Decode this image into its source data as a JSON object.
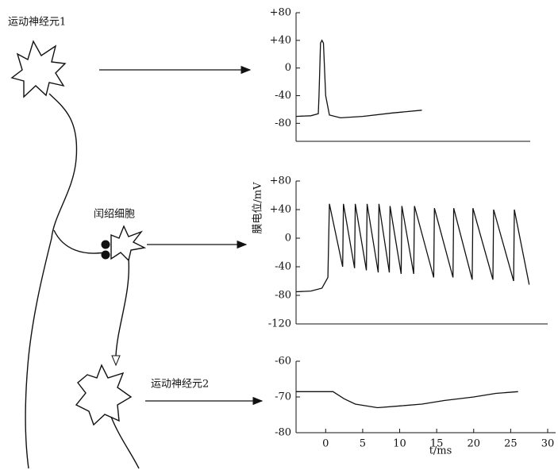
{
  "diagram": {
    "labels": [
      "运动神经元1",
      "闰绍细胞",
      "运动神经元2"
    ]
  },
  "chart_data": [
    {
      "type": "line",
      "x": [
        -4,
        -2,
        -1,
        -0.9,
        -0.7,
        -0.5,
        -0.3,
        0,
        0.5,
        2,
        5,
        9,
        13
      ],
      "values": [
        -70,
        -69,
        -66,
        -40,
        36,
        40,
        36,
        -40,
        -68,
        -72,
        -70,
        -65,
        -61
      ],
      "xlim": [
        -4,
        30
      ],
      "ylim": [
        -106,
        80
      ],
      "yticks": [
        {
          "value": 80,
          "label": "+80"
        },
        {
          "value": 40,
          "label": "+40"
        },
        0,
        -40,
        -80
      ]
    },
    {
      "type": "line",
      "y_label": "膜电位/mV",
      "x": [
        -4,
        -2,
        -0.5,
        0.3,
        0.5,
        2.3,
        2.4,
        3.9,
        4.0,
        5.5,
        5.6,
        7.1,
        7.2,
        8.6,
        8.7,
        10.2,
        10.3,
        11.9,
        12.0,
        14.6,
        14.7,
        17.2,
        17.3,
        19.8,
        19.9,
        22.6,
        22.7,
        25.4,
        25.5,
        27.5
      ],
      "values": [
        -75,
        -74,
        -70,
        -55,
        48,
        -40,
        48,
        -42,
        48,
        -45,
        48,
        -48,
        48,
        -48,
        45,
        -50,
        45,
        -50,
        45,
        -55,
        42,
        -55,
        42,
        -58,
        42,
        -58,
        40,
        -60,
        40,
        -65
      ],
      "xlim": [
        -4,
        30
      ],
      "ylim": [
        -120,
        80
      ],
      "yticks": [
        {
          "value": 80,
          "label": "+80"
        },
        {
          "value": 40,
          "label": "+40"
        },
        0,
        -40,
        -80,
        -120
      ]
    },
    {
      "type": "line",
      "x_label": "t/ms",
      "x": [
        -4,
        1,
        2.5,
        4,
        7,
        10,
        13,
        16,
        20,
        23,
        26
      ],
      "values": [
        -68.5,
        -68.5,
        -70.5,
        -72,
        -73,
        -72.5,
        -72,
        -71,
        -70,
        -69,
        -68.5
      ],
      "xlim": [
        -4,
        30
      ],
      "ylim": [
        -80,
        -60
      ],
      "xticks": [
        0,
        5,
        10,
        15,
        20,
        25,
        30
      ],
      "yticks": [
        -60,
        -70,
        -80
      ]
    }
  ]
}
